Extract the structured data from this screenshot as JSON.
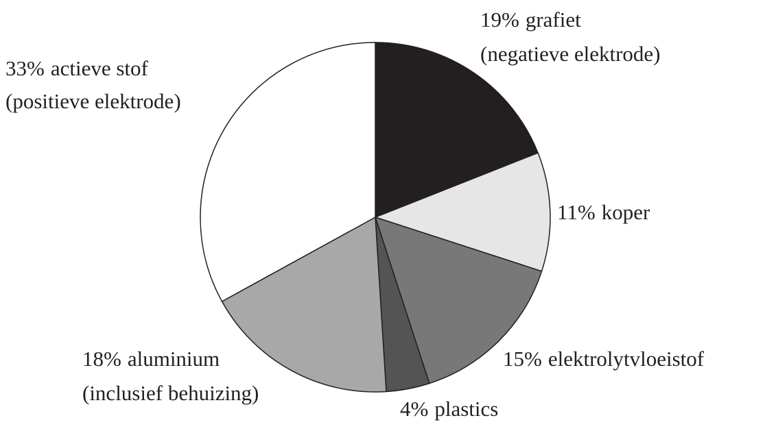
{
  "chart_data": {
    "type": "pie",
    "categories": [
      "grafiet\n(negatieve elektrode)",
      "koper",
      "elektrolytvloeistof",
      "plastics",
      "aluminium\n(inclusief behuizing)",
      "actieve stof\n(positieve elektrode)"
    ],
    "values": [
      19,
      11,
      15,
      4,
      18,
      33
    ],
    "value_labels": [
      "19%",
      "11%",
      "15%",
      "4%",
      "18%",
      "33%"
    ],
    "colors": [
      "#231f20",
      "#e6e6e6",
      "#787878",
      "#545454",
      "#a8a8a8",
      "#ffffff"
    ]
  }
}
